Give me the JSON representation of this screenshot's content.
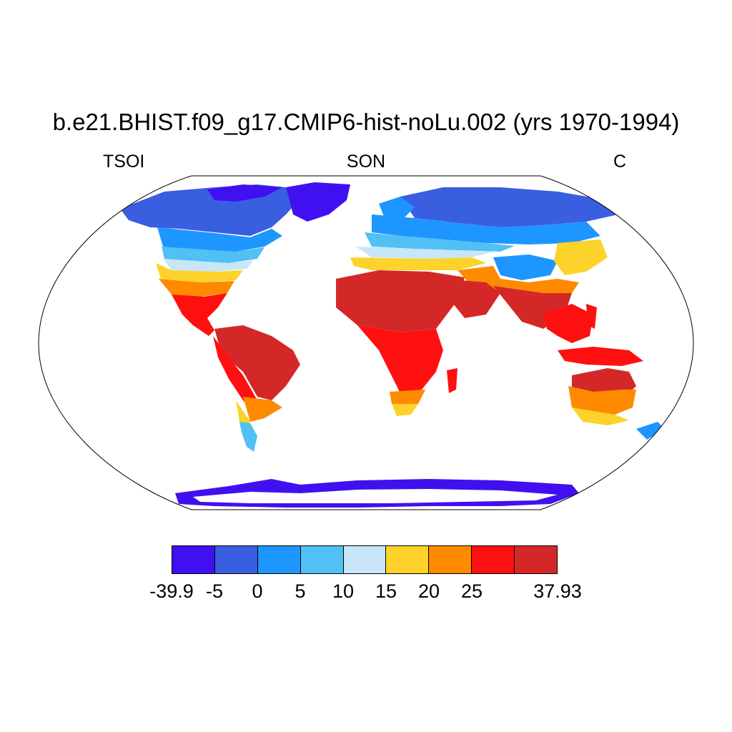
{
  "title": "b.e21.BHIST.f09_g17.CMIP6-hist-noLu.002 (yrs 1970-1994)",
  "left_string": "TSOI",
  "center_string": "SON",
  "right_string": "C",
  "map": {
    "projection": "Robinson",
    "ocean_color": "#ffffff",
    "coastline_color": "#000000"
  },
  "colorbar": {
    "colors": [
      "#4010f0",
      "#3a5ee0",
      "#1e96ff",
      "#50c0f5",
      "#c8e6f8",
      "#fdd22a",
      "#ff8a00",
      "#ff1010",
      "#d42828"
    ],
    "labels": [
      "-39.9",
      "-5",
      "0",
      "5",
      "10",
      "15",
      "20",
      "25",
      "37.93"
    ],
    "label_positions": [
      0,
      1,
      2,
      3,
      4,
      5,
      6,
      7,
      9
    ]
  }
}
